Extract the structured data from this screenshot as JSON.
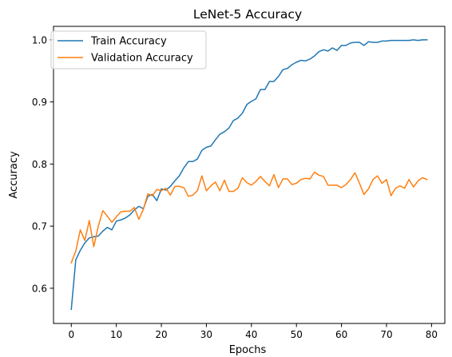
{
  "chart_data": {
    "type": "line",
    "title": "LeNet-5 Accuracy",
    "xlabel": "Epochs",
    "ylabel": "Accuracy",
    "xlim": [
      -3.95,
      82.95
    ],
    "ylim": [
      0.5433,
      1.0217
    ],
    "xticks": [
      0,
      10,
      20,
      30,
      40,
      50,
      60,
      70,
      80
    ],
    "yticks": [
      0.6,
      0.7,
      0.8,
      0.9,
      1.0
    ],
    "xtick_labels": [
      "0",
      "10",
      "20",
      "30",
      "40",
      "50",
      "60",
      "70",
      "80"
    ],
    "ytick_labels": [
      "0.6",
      "0.7",
      "0.8",
      "0.9",
      "1.0"
    ],
    "grid": false,
    "legend_position": "top-left",
    "x": [
      0,
      1,
      2,
      3,
      4,
      5,
      6,
      7,
      8,
      9,
      10,
      11,
      12,
      13,
      14,
      15,
      16,
      17,
      18,
      19,
      20,
      21,
      22,
      23,
      24,
      25,
      26,
      27,
      28,
      29,
      30,
      31,
      32,
      33,
      34,
      35,
      36,
      37,
      38,
      39,
      40,
      41,
      42,
      43,
      44,
      45,
      46,
      47,
      48,
      49,
      50,
      51,
      52,
      53,
      54,
      55,
      56,
      57,
      58,
      59,
      60,
      61,
      62,
      63,
      64,
      65,
      66,
      67,
      68,
      69,
      70,
      71,
      72,
      73,
      74,
      75,
      76,
      77,
      78,
      79
    ],
    "series": [
      {
        "name": "Train Accuracy",
        "color": "#1f77b4",
        "values": [
          0.566,
          0.646,
          0.661,
          0.673,
          0.681,
          0.683,
          0.684,
          0.692,
          0.698,
          0.694,
          0.708,
          0.71,
          0.713,
          0.718,
          0.726,
          0.732,
          0.728,
          0.748,
          0.751,
          0.741,
          0.76,
          0.758,
          0.764,
          0.773,
          0.781,
          0.794,
          0.804,
          0.804,
          0.808,
          0.822,
          0.827,
          0.829,
          0.839,
          0.848,
          0.852,
          0.858,
          0.87,
          0.874,
          0.882,
          0.896,
          0.901,
          0.905,
          0.92,
          0.92,
          0.933,
          0.933,
          0.941,
          0.952,
          0.954,
          0.96,
          0.964,
          0.967,
          0.966,
          0.969,
          0.974,
          0.981,
          0.984,
          0.982,
          0.987,
          0.983,
          0.991,
          0.991,
          0.995,
          0.996,
          0.996,
          0.991,
          0.997,
          0.996,
          0.996,
          0.998,
          0.998,
          0.999,
          0.999,
          0.999,
          0.999,
          0.999,
          1.0,
          0.999,
          1.0,
          1.0
        ]
      },
      {
        "name": "Validation Accuracy",
        "color": "#ff7f0e",
        "values": [
          0.641,
          0.66,
          0.694,
          0.677,
          0.709,
          0.667,
          0.7,
          0.725,
          0.716,
          0.706,
          0.715,
          0.723,
          0.724,
          0.724,
          0.73,
          0.711,
          0.727,
          0.752,
          0.749,
          0.759,
          0.757,
          0.761,
          0.75,
          0.764,
          0.764,
          0.762,
          0.748,
          0.75,
          0.757,
          0.781,
          0.757,
          0.765,
          0.771,
          0.757,
          0.774,
          0.756,
          0.756,
          0.761,
          0.778,
          0.77,
          0.766,
          0.772,
          0.78,
          0.772,
          0.765,
          0.783,
          0.762,
          0.776,
          0.776,
          0.767,
          0.769,
          0.775,
          0.777,
          0.776,
          0.787,
          0.782,
          0.78,
          0.766,
          0.766,
          0.766,
          0.762,
          0.767,
          0.775,
          0.786,
          0.769,
          0.751,
          0.76,
          0.775,
          0.781,
          0.769,
          0.775,
          0.749,
          0.761,
          0.765,
          0.761,
          0.775,
          0.763,
          0.773,
          0.778,
          0.775
        ]
      }
    ]
  }
}
